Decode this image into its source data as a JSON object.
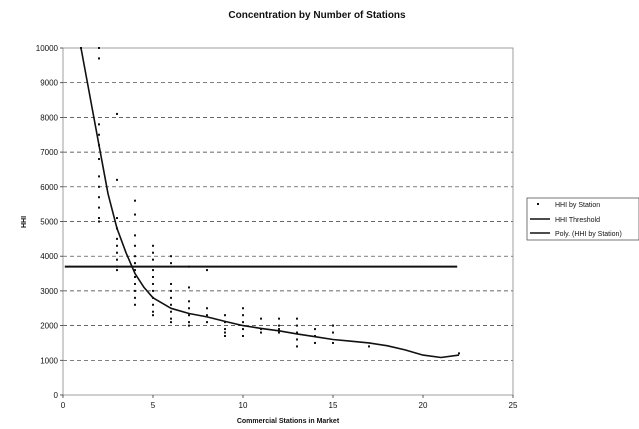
{
  "chart_data": {
    "type": "scatter",
    "title": "Concentration by Number of Stations",
    "xlabel": "Commercial Stations in Market",
    "ylabel": "HHI",
    "xlim": [
      0,
      25
    ],
    "ylim": [
      0,
      10000
    ],
    "x_ticks": [
      "0",
      "5",
      "10",
      "15",
      "20",
      "25"
    ],
    "y_ticks": [
      "0",
      "1000",
      "2000",
      "3000",
      "4000",
      "5000",
      "6000",
      "7000",
      "8000",
      "9000",
      "10000"
    ],
    "grid": "horizontal dashed",
    "legend_position": "right",
    "legend": [
      "HHI by Station",
      "HHI Threshold",
      "Poly. (HHI by Station)"
    ],
    "series": [
      {
        "name": "HHI by Station",
        "kind": "scatter",
        "points": [
          [
            1,
            10000
          ],
          [
            2,
            10000
          ],
          [
            2,
            9700
          ],
          [
            2,
            7800
          ],
          [
            2,
            7500
          ],
          [
            2,
            7200
          ],
          [
            2,
            6800
          ],
          [
            2,
            6300
          ],
          [
            2,
            6000
          ],
          [
            2,
            5700
          ],
          [
            2,
            5400
          ],
          [
            2,
            5100
          ],
          [
            2,
            5000
          ],
          [
            3,
            8100
          ],
          [
            3,
            6200
          ],
          [
            3,
            5100
          ],
          [
            3,
            4800
          ],
          [
            3,
            4500
          ],
          [
            3,
            4300
          ],
          [
            3,
            4100
          ],
          [
            3,
            3900
          ],
          [
            3,
            3700
          ],
          [
            3,
            3600
          ],
          [
            4,
            5600
          ],
          [
            4,
            5200
          ],
          [
            4,
            4600
          ],
          [
            4,
            4300
          ],
          [
            4,
            4000
          ],
          [
            4,
            3800
          ],
          [
            4,
            3600
          ],
          [
            4,
            3400
          ],
          [
            4,
            3200
          ],
          [
            4,
            3000
          ],
          [
            4,
            2800
          ],
          [
            4,
            2600
          ],
          [
            5,
            4300
          ],
          [
            5,
            4100
          ],
          [
            5,
            3900
          ],
          [
            5,
            3600
          ],
          [
            5,
            3400
          ],
          [
            5,
            3200
          ],
          [
            5,
            3000
          ],
          [
            5,
            2800
          ],
          [
            5,
            2600
          ],
          [
            5,
            2400
          ],
          [
            5,
            2300
          ],
          [
            6,
            4000
          ],
          [
            6,
            3800
          ],
          [
            6,
            3200
          ],
          [
            6,
            3000
          ],
          [
            6,
            2800
          ],
          [
            6,
            2600
          ],
          [
            6,
            2400
          ],
          [
            6,
            2200
          ],
          [
            6,
            2100
          ],
          [
            7,
            3700
          ],
          [
            7,
            3100
          ],
          [
            7,
            2700
          ],
          [
            7,
            2500
          ],
          [
            7,
            2300
          ],
          [
            7,
            2100
          ],
          [
            7,
            2000
          ],
          [
            8,
            3600
          ],
          [
            8,
            2500
          ],
          [
            8,
            2300
          ],
          [
            8,
            2100
          ],
          [
            9,
            2300
          ],
          [
            9,
            2100
          ],
          [
            9,
            1900
          ],
          [
            9,
            1800
          ],
          [
            9,
            1700
          ],
          [
            10,
            2500
          ],
          [
            10,
            2300
          ],
          [
            10,
            2100
          ],
          [
            10,
            1900
          ],
          [
            10,
            1700
          ],
          [
            11,
            2200
          ],
          [
            11,
            1900
          ],
          [
            11,
            1800
          ],
          [
            12,
            2200
          ],
          [
            12,
            2000
          ],
          [
            12,
            1900
          ],
          [
            12,
            1800
          ],
          [
            13,
            2200
          ],
          [
            13,
            2000
          ],
          [
            13,
            1800
          ],
          [
            13,
            1600
          ],
          [
            13,
            1400
          ],
          [
            14,
            1900
          ],
          [
            14,
            1700
          ],
          [
            14,
            1500
          ],
          [
            15,
            2000
          ],
          [
            15,
            1800
          ],
          [
            15,
            1500
          ],
          [
            17,
            1400
          ],
          [
            22,
            1200
          ]
        ]
      },
      {
        "name": "HHI Threshold",
        "kind": "line",
        "points": [
          [
            0.1,
            3700
          ],
          [
            21.9,
            3700
          ]
        ]
      },
      {
        "name": "Poly. (HHI by Station)",
        "kind": "curve",
        "points": [
          [
            1,
            10000
          ],
          [
            1.5,
            8600
          ],
          [
            2,
            7200
          ],
          [
            2.5,
            5800
          ],
          [
            3,
            4800
          ],
          [
            3.5,
            4100
          ],
          [
            4,
            3500
          ],
          [
            4.5,
            3100
          ],
          [
            5,
            2800
          ],
          [
            6,
            2500
          ],
          [
            7,
            2350
          ],
          [
            8,
            2250
          ],
          [
            9,
            2120
          ],
          [
            10,
            2000
          ],
          [
            11,
            1920
          ],
          [
            12,
            1850
          ],
          [
            13,
            1760
          ],
          [
            14,
            1680
          ],
          [
            15,
            1600
          ],
          [
            16,
            1550
          ],
          [
            17,
            1500
          ],
          [
            18,
            1420
          ],
          [
            19,
            1300
          ],
          [
            20,
            1150
          ],
          [
            21,
            1080
          ],
          [
            22,
            1150
          ]
        ]
      }
    ]
  }
}
